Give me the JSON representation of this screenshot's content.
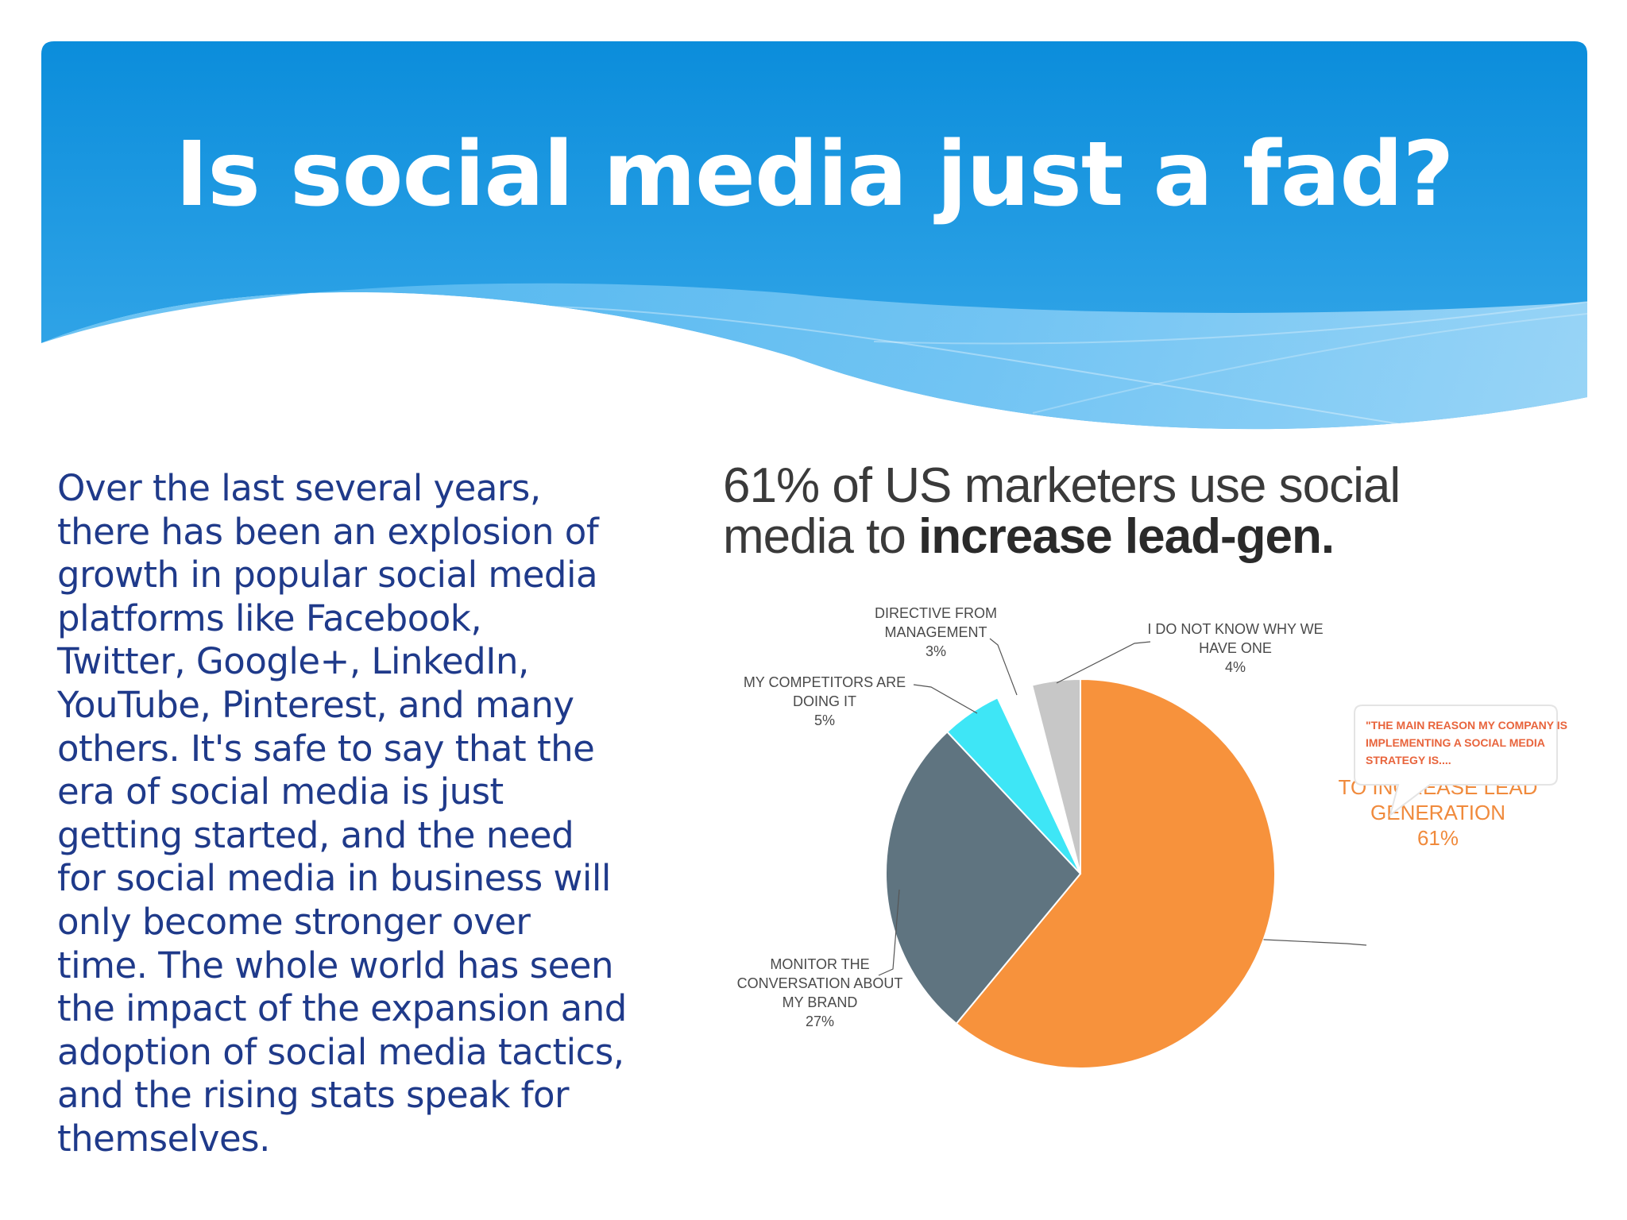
{
  "slide": {
    "title": "Is social media just a fad?",
    "body_lines": [
      "Over the last several years,",
      "there has been an explosion of",
      "growth in popular social media",
      "platforms like Facebook,",
      "Twitter, Google+, LinkedIn,",
      "YouTube, Pinterest, and many",
      "others. It's safe to say that the",
      "era of social media is just",
      "getting started, and the need",
      "for social media in business will",
      "only become stronger over",
      "time. The whole world has seen",
      "the impact of the expansion and",
      "adoption of social media tactics,",
      "and the rising stats speak for",
      "themselves."
    ]
  },
  "colors": {
    "banner_dark": "#0f8fdc",
    "banner_light": "#41b0ee",
    "body_text": "#1f3a8a",
    "orange": "#f7923c",
    "slate": "#5f7480",
    "cyan": "#3ee6f6",
    "white_slice": "#ffffff",
    "gray_slice": "#c7c7c7"
  },
  "chart_data": {
    "type": "pie",
    "headline_line1": "61% of US marketers use social",
    "headline_line2_plain": "media to ",
    "headline_line2_bold": "increase lead-gen.",
    "callout_lines": [
      "\"THE MAIN REASON MY COMPANY IS",
      "IMPLEMENTING A SOCIAL MEDIA",
      "STRATEGY IS...."
    ],
    "slices": [
      {
        "key": "lead",
        "lines": [
          "TO INCREASE LEAD",
          "GENERATION"
        ],
        "pct_label": "61%",
        "value": 61,
        "color": "#f7923c"
      },
      {
        "key": "monitor",
        "lines": [
          "MONITOR THE",
          "CONVERSATION ABOUT",
          "MY BRAND"
        ],
        "pct_label": "27%",
        "value": 27,
        "color": "#5f7480"
      },
      {
        "key": "competitors",
        "lines": [
          "MY COMPETITORS ARE",
          "DOING IT"
        ],
        "pct_label": "5%",
        "value": 5,
        "color": "#3ee6f6"
      },
      {
        "key": "directive",
        "lines": [
          "DIRECTIVE FROM",
          "MANAGEMENT"
        ],
        "pct_label": "3%",
        "value": 3,
        "color": "#ffffff"
      },
      {
        "key": "unknown",
        "lines": [
          "I DO NOT KNOW WHY WE",
          "HAVE ONE"
        ],
        "pct_label": "4%",
        "value": 4,
        "color": "#c7c7c7"
      }
    ]
  }
}
